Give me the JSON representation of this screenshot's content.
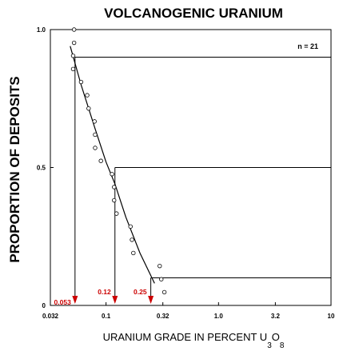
{
  "chart_data": {
    "type": "scatter",
    "title": "VOLCANOGENIC URANIUM",
    "ylabel": "PROPORTION OF DEPOSITS",
    "xlabel_main": "URANIUM GRADE IN PERCENT U",
    "xlabel_sub1": "3",
    "xlabel_mid": "O",
    "xlabel_sub2": "8",
    "xscale": "log",
    "xlim": [
      0.032,
      10
    ],
    "ylim": [
      0,
      1
    ],
    "x_ticks": [
      {
        "value": 0.032,
        "label": "0.032"
      },
      {
        "value": 0.1,
        "label": "0.1"
      },
      {
        "value": 0.32,
        "label": "0.32"
      },
      {
        "value": 1.0,
        "label": "1.0"
      },
      {
        "value": 3.2,
        "label": "3.2"
      },
      {
        "value": 10,
        "label": "10"
      }
    ],
    "y_ticks": [
      {
        "value": 0,
        "label": "0"
      },
      {
        "value": 0.5,
        "label": "0.5"
      },
      {
        "value": 1.0,
        "label": "1.0"
      }
    ],
    "n_label": "n = 21",
    "points": [
      {
        "x": 0.052,
        "y": 1.0
      },
      {
        "x": 0.052,
        "y": 0.952
      },
      {
        "x": 0.051,
        "y": 0.905
      },
      {
        "x": 0.051,
        "y": 0.857
      },
      {
        "x": 0.06,
        "y": 0.81
      },
      {
        "x": 0.068,
        "y": 0.762
      },
      {
        "x": 0.07,
        "y": 0.714
      },
      {
        "x": 0.079,
        "y": 0.667
      },
      {
        "x": 0.08,
        "y": 0.619
      },
      {
        "x": 0.08,
        "y": 0.571
      },
      {
        "x": 0.09,
        "y": 0.524
      },
      {
        "x": 0.113,
        "y": 0.476
      },
      {
        "x": 0.118,
        "y": 0.429
      },
      {
        "x": 0.118,
        "y": 0.381
      },
      {
        "x": 0.124,
        "y": 0.333
      },
      {
        "x": 0.165,
        "y": 0.286
      },
      {
        "x": 0.17,
        "y": 0.238
      },
      {
        "x": 0.175,
        "y": 0.19
      },
      {
        "x": 0.3,
        "y": 0.143
      },
      {
        "x": 0.31,
        "y": 0.095
      },
      {
        "x": 0.33,
        "y": 0.048
      }
    ],
    "fit_curve": [
      {
        "x": 0.048,
        "y": 0.94
      },
      {
        "x": 0.06,
        "y": 0.8
      },
      {
        "x": 0.08,
        "y": 0.64
      },
      {
        "x": 0.1,
        "y": 0.52
      },
      {
        "x": 0.12,
        "y": 0.44
      },
      {
        "x": 0.15,
        "y": 0.32
      },
      {
        "x": 0.2,
        "y": 0.19
      },
      {
        "x": 0.27,
        "y": 0.08
      }
    ],
    "reference_lines": [
      {
        "proportion": 0.9,
        "grade": 0.053,
        "label": "0.053"
      },
      {
        "proportion": 0.5,
        "grade": 0.12,
        "label": "0.12"
      },
      {
        "proportion": 0.1,
        "grade": 0.25,
        "label": "0.25"
      }
    ],
    "colors": {
      "axis": "#000000",
      "marker": "#cc0000",
      "marker_label": "#cc0000"
    }
  }
}
